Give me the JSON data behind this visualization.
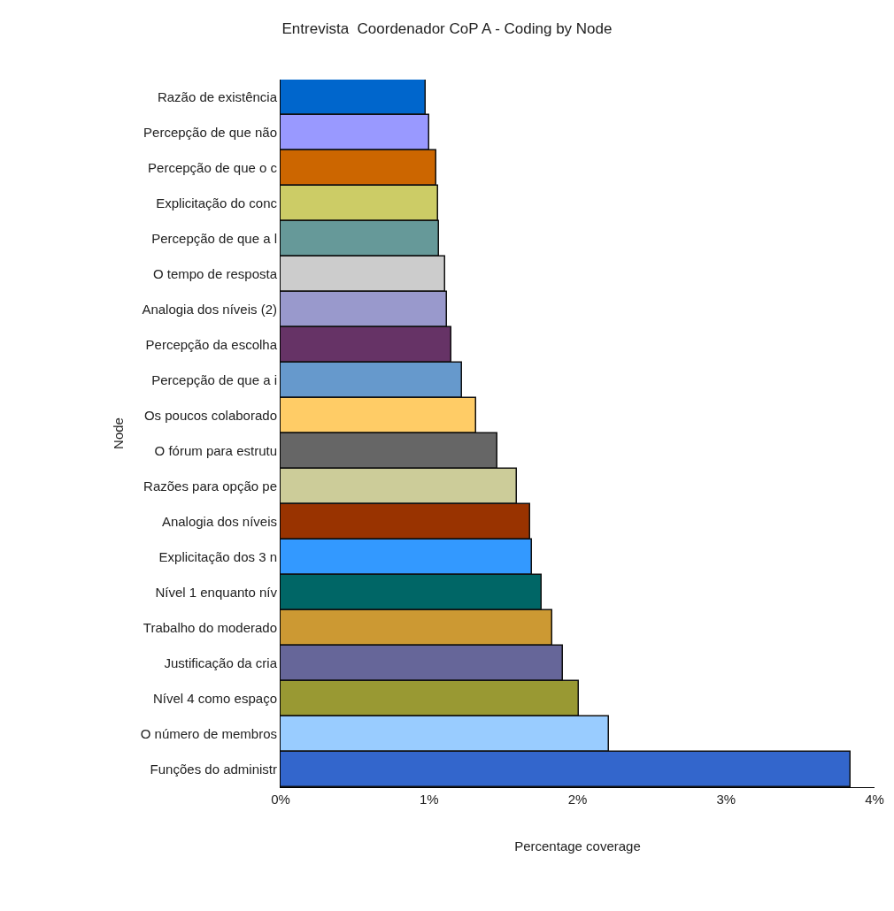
{
  "chart_data": {
    "type": "bar",
    "orientation": "horizontal",
    "title": "Entrevista  Coordenador CoP A - Coding by Node",
    "xlabel": "Percentage coverage",
    "ylabel": "Node",
    "categories": [
      "Razão de existência",
      "Percepção de que não",
      "Percepção de que o c",
      "Explicitação do conc",
      "Percepção de que a l",
      "O tempo de resposta",
      "Analogia dos níveis (2)",
      "Percepção da escolha",
      "Percepção de que a i",
      "Os poucos colaborado",
      "O fórum para estrutu",
      "Razões para opção pe",
      "Analogia dos níveis",
      "Explicitação dos 3 n",
      "Nível 1 enquanto nív",
      "Trabalho do moderado",
      "Justificação da cria",
      "Nível 4 como espaço",
      "O número de membros",
      "Funções do administr"
    ],
    "values": [
      0.98,
      1.0,
      1.05,
      1.06,
      1.07,
      1.11,
      1.12,
      1.15,
      1.22,
      1.32,
      1.46,
      1.59,
      1.68,
      1.69,
      1.76,
      1.83,
      1.9,
      2.01,
      2.21,
      3.84
    ],
    "colors": [
      "#0066cc",
      "#9999ff",
      "#cc6600",
      "#cccc66",
      "#669999",
      "#cccccc",
      "#9999cc",
      "#663366",
      "#6699cc",
      "#ffcc66",
      "#666666",
      "#cccc99",
      "#993300",
      "#3399ff",
      "#006666",
      "#cc9933",
      "#666699",
      "#999933",
      "#99ccff",
      "#3366cc"
    ],
    "xlim": [
      0,
      4
    ],
    "xticks": [
      {
        "value": 0,
        "label": "0%"
      },
      {
        "value": 1,
        "label": "1%"
      },
      {
        "value": 2,
        "label": "2%"
      },
      {
        "value": 3,
        "label": "3%"
      },
      {
        "value": 4,
        "label": "4%"
      }
    ],
    "legend": false
  }
}
